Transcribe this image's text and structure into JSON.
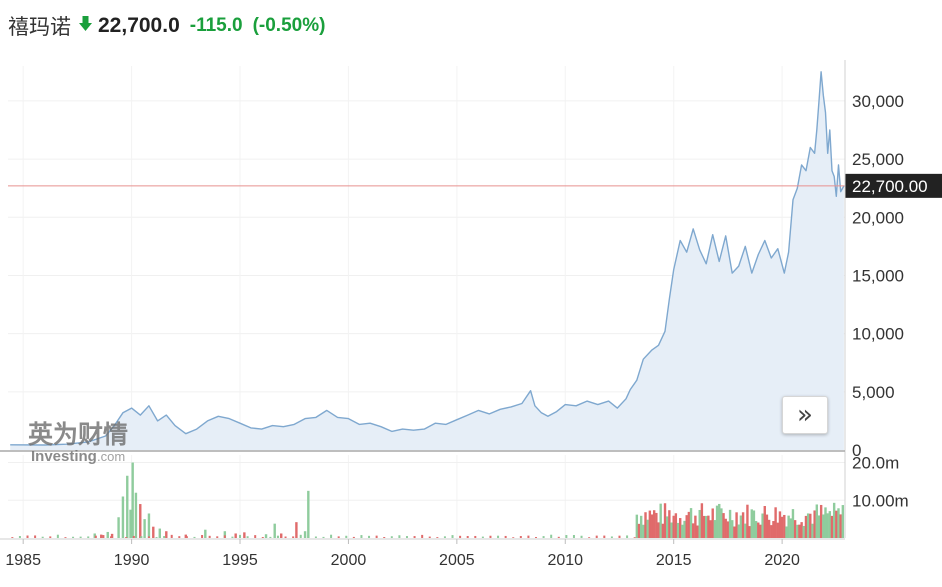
{
  "header": {
    "name": "禧玛诺",
    "direction_icon": "arrow-down-icon",
    "price": "22,700.0",
    "change": "-115.0",
    "change_pct": "(-0.50%)"
  },
  "watermark": {
    "text_cn": "英为财情",
    "text_en": "Investing",
    "text_com": ".com"
  },
  "scroll_button": {
    "icon": "double-chevron-right-icon",
    "label": "»"
  },
  "colors": {
    "line": "#7fa8cf",
    "area": "#e6eef7",
    "current_line": "#e8908f",
    "price_tag_bg": "#222222",
    "vol_up": "#8fcc9d",
    "vol_down": "#e06b6b",
    "change": "#1a9f3c"
  },
  "chart_data": {
    "type": "area",
    "x_unit": "year",
    "ylim": [
      0,
      33000
    ],
    "yticks": [
      0,
      5000,
      10000,
      15000,
      20000,
      25000,
      30000
    ],
    "ytick_labels": [
      "0",
      "5,000",
      "10,000",
      "15,000",
      "20,000",
      "25,000",
      "30,000"
    ],
    "xlim": [
      1984.3,
      2022.9
    ],
    "xticks": [
      1985,
      1990,
      1995,
      2000,
      2005,
      2010,
      2015,
      2020
    ],
    "xtick_labels": [
      "1985",
      "1990",
      "1995",
      "2000",
      "2005",
      "2010",
      "2015",
      "2020"
    ],
    "current_price": 22700,
    "current_price_label": "22,700.00",
    "price": [
      [
        1984.4,
        450
      ],
      [
        1986.0,
        430
      ],
      [
        1987.0,
        500
      ],
      [
        1988.0,
        700
      ],
      [
        1988.8,
        1200
      ],
      [
        1989.2,
        2100
      ],
      [
        1989.6,
        3200
      ],
      [
        1990.0,
        3600
      ],
      [
        1990.4,
        3000
      ],
      [
        1990.8,
        3800
      ],
      [
        1991.2,
        2500
      ],
      [
        1991.6,
        3000
      ],
      [
        1992.0,
        2100
      ],
      [
        1992.5,
        1400
      ],
      [
        1993.0,
        1800
      ],
      [
        1993.5,
        2500
      ],
      [
        1994.0,
        2900
      ],
      [
        1994.5,
        2700
      ],
      [
        1995.0,
        2300
      ],
      [
        1995.5,
        1900
      ],
      [
        1996.0,
        1800
      ],
      [
        1996.5,
        2100
      ],
      [
        1997.0,
        2000
      ],
      [
        1997.5,
        2200
      ],
      [
        1998.0,
        2700
      ],
      [
        1998.5,
        2800
      ],
      [
        1999.0,
        3400
      ],
      [
        1999.5,
        2800
      ],
      [
        2000.0,
        2700
      ],
      [
        2000.5,
        2200
      ],
      [
        2001.0,
        2300
      ],
      [
        2001.5,
        2000
      ],
      [
        2002.0,
        1600
      ],
      [
        2002.5,
        1800
      ],
      [
        2003.0,
        1700
      ],
      [
        2003.5,
        1800
      ],
      [
        2004.0,
        2300
      ],
      [
        2004.5,
        2200
      ],
      [
        2005.0,
        2600
      ],
      [
        2005.5,
        3000
      ],
      [
        2006.0,
        3400
      ],
      [
        2006.5,
        3100
      ],
      [
        2007.0,
        3500
      ],
      [
        2007.5,
        3700
      ],
      [
        2008.0,
        4000
      ],
      [
        2008.4,
        5100
      ],
      [
        2008.6,
        3800
      ],
      [
        2008.9,
        3200
      ],
      [
        2009.2,
        2900
      ],
      [
        2009.6,
        3300
      ],
      [
        2010.0,
        3900
      ],
      [
        2010.5,
        3800
      ],
      [
        2011.0,
        4200
      ],
      [
        2011.5,
        3900
      ],
      [
        2012.0,
        4200
      ],
      [
        2012.4,
        3600
      ],
      [
        2012.8,
        4400
      ],
      [
        2013.0,
        5200
      ],
      [
        2013.3,
        6000
      ],
      [
        2013.6,
        7800
      ],
      [
        2014.0,
        8600
      ],
      [
        2014.3,
        9000
      ],
      [
        2014.6,
        10200
      ],
      [
        2014.8,
        13000
      ],
      [
        2015.0,
        15500
      ],
      [
        2015.3,
        18000
      ],
      [
        2015.6,
        17000
      ],
      [
        2015.9,
        19000
      ],
      [
        2016.2,
        17200
      ],
      [
        2016.5,
        16000
      ],
      [
        2016.8,
        18500
      ],
      [
        2017.1,
        16200
      ],
      [
        2017.4,
        18400
      ],
      [
        2017.7,
        15200
      ],
      [
        2018.0,
        15800
      ],
      [
        2018.3,
        17500
      ],
      [
        2018.6,
        15200
      ],
      [
        2018.9,
        16800
      ],
      [
        2019.2,
        18000
      ],
      [
        2019.5,
        16500
      ],
      [
        2019.8,
        17300
      ],
      [
        2020.1,
        15200
      ],
      [
        2020.3,
        17000
      ],
      [
        2020.5,
        21500
      ],
      [
        2020.7,
        22500
      ],
      [
        2020.9,
        24500
      ],
      [
        2021.1,
        24000
      ],
      [
        2021.3,
        26000
      ],
      [
        2021.5,
        25500
      ],
      [
        2021.6,
        27500
      ],
      [
        2021.7,
        30000
      ],
      [
        2021.8,
        32500
      ],
      [
        2021.9,
        30500
      ],
      [
        2022.0,
        29000
      ],
      [
        2022.1,
        25500
      ],
      [
        2022.2,
        27500
      ],
      [
        2022.3,
        24000
      ],
      [
        2022.4,
        23500
      ],
      [
        2022.5,
        21800
      ],
      [
        2022.6,
        24500
      ],
      [
        2022.7,
        22200
      ],
      [
        2022.85,
        22700
      ]
    ],
    "volume_ylim": [
      0,
      22000000
    ],
    "volume_ticks": [
      10000000,
      20000000
    ],
    "volume_tick_labels": [
      "10.00m",
      "20.0m"
    ],
    "volume": [
      [
        1988.3,
        1200000,
        "up"
      ],
      [
        1988.6,
        900000,
        "down"
      ],
      [
        1988.9,
        1600000,
        "up"
      ],
      [
        1989.1,
        1100000,
        "down"
      ],
      [
        1989.4,
        5500000,
        "up"
      ],
      [
        1989.6,
        11000000,
        "up"
      ],
      [
        1989.8,
        16500000,
        "up"
      ],
      [
        1989.95,
        7500000,
        "up"
      ],
      [
        1990.05,
        20000000,
        "up"
      ],
      [
        1990.2,
        12000000,
        "up"
      ],
      [
        1990.4,
        9000000,
        "down"
      ],
      [
        1990.6,
        5000000,
        "up"
      ],
      [
        1990.8,
        6500000,
        "up"
      ],
      [
        1991.0,
        3000000,
        "down"
      ],
      [
        1991.3,
        2500000,
        "up"
      ],
      [
        1991.6,
        1800000,
        "down"
      ],
      [
        1992.5,
        900000,
        "down"
      ],
      [
        1993.4,
        2200000,
        "up"
      ],
      [
        1994.3,
        1800000,
        "up"
      ],
      [
        1994.8,
        1200000,
        "down"
      ],
      [
        1995.2,
        1500000,
        "down"
      ],
      [
        1996.2,
        1000000,
        "up"
      ],
      [
        1996.6,
        3800000,
        "up"
      ],
      [
        1996.9,
        1200000,
        "down"
      ],
      [
        1997.6,
        4200000,
        "down"
      ],
      [
        1998.0,
        1800000,
        "up"
      ],
      [
        1998.15,
        12500000,
        "up"
      ]
    ],
    "volume_cluster": {
      "start": 2013.3,
      "end": 2022.8,
      "step": 0.1,
      "min_value": 3000000,
      "max_value": 9500000
    }
  }
}
